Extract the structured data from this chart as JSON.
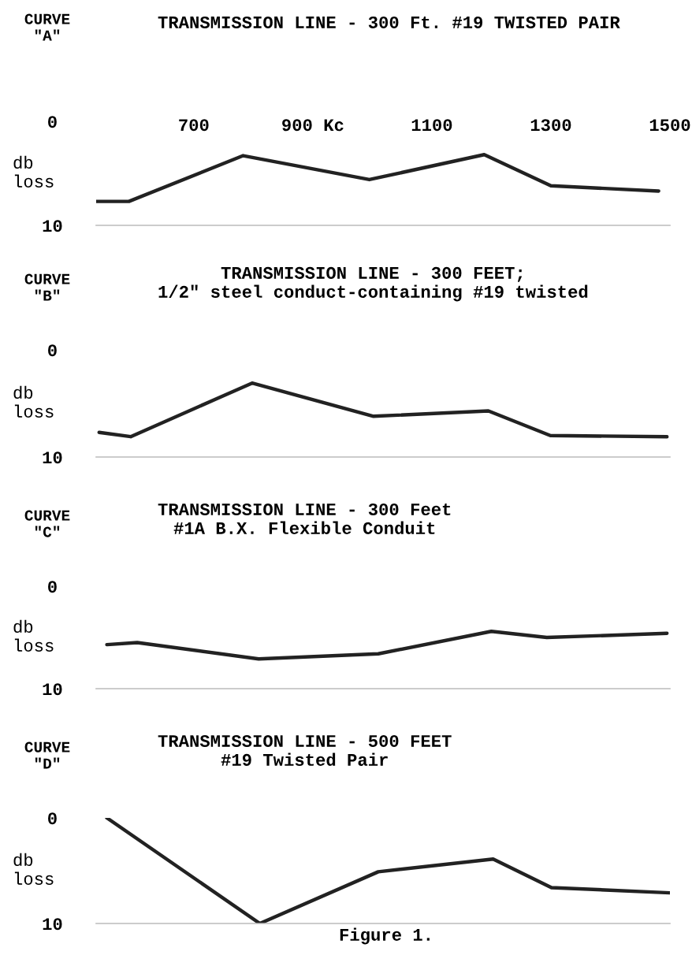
{
  "chart_data": [
    {
      "type": "line",
      "title": "TRANSMISSION LINE - 300 Ft. #19 TWISTED PAIR",
      "subtitle": "CURVE\n\"A\"",
      "ylabel": "db\nloss",
      "x": [
        536,
        591,
        783,
        995,
        1188,
        1300,
        1481
      ],
      "values": [
        7.7,
        7.7,
        3.3,
        5.6,
        3.2,
        6.2,
        6.7
      ],
      "color": "#222222",
      "xlim": [
        536,
        1500
      ],
      "xticks": [
        700,
        {
          "value": 900,
          "label": "900 Kc"
        },
        1100,
        1300,
        1500
      ],
      "ylim": [
        10,
        0
      ],
      "yticks": [
        0,
        10
      ],
      "grid": false,
      "legend": false
    },
    {
      "type": "line",
      "title": "TRANSMISSION LINE - 300 FEET;\n1/2\" steel conduct-containing #19 twisted",
      "subtitle": "CURVE\n\"B\"",
      "ylabel": "db\nloss",
      "x": [
        541,
        594,
        798,
        1002,
        1195,
        1299,
        1495
      ],
      "values": [
        7.7,
        8.1,
        3.1,
        6.2,
        5.7,
        8.0,
        8.1
      ],
      "color": "#222222",
      "xlim": [
        536,
        1500
      ],
      "ylim": [
        10,
        0
      ],
      "yticks": [
        0,
        10
      ],
      "tick_labels": "y",
      "grid": false,
      "legend": false
    },
    {
      "type": "line",
      "title": "TRANSMISSION LINE - 300 Feet\n#1A B.X. Flexible Conduit",
      "subtitle": "CURVE\n\"C\"",
      "ylabel": "db\nloss",
      "x": [
        554,
        605,
        809,
        1010,
        1200,
        1293,
        1495
      ],
      "values": [
        5.7,
        5.5,
        7.1,
        6.6,
        4.4,
        5.0,
        4.6
      ],
      "color": "#222222",
      "xlim": [
        536,
        1500
      ],
      "ylim": [
        10,
        0
      ],
      "yticks": [
        0,
        10
      ],
      "tick_labels": "y",
      "grid": false,
      "legend": false
    },
    {
      "type": "line",
      "title": "TRANSMISSION LINE - 500 FEET\n#19 Twisted Pair",
      "subtitle": "CURVE\n\"D\"",
      "ylabel": "db\nloss",
      "x": [
        554,
        811,
        1010,
        1203,
        1301,
        1500
      ],
      "values": [
        0,
        10,
        5.1,
        3.9,
        6.6,
        7.1
      ],
      "color": "#222222",
      "xlim": [
        536,
        1500
      ],
      "ylim": [
        10,
        0
      ],
      "yticks": [
        0,
        10
      ],
      "tick_labels": "y",
      "grid": false,
      "legend": false,
      "annotations": [
        "Figure 1."
      ]
    }
  ]
}
